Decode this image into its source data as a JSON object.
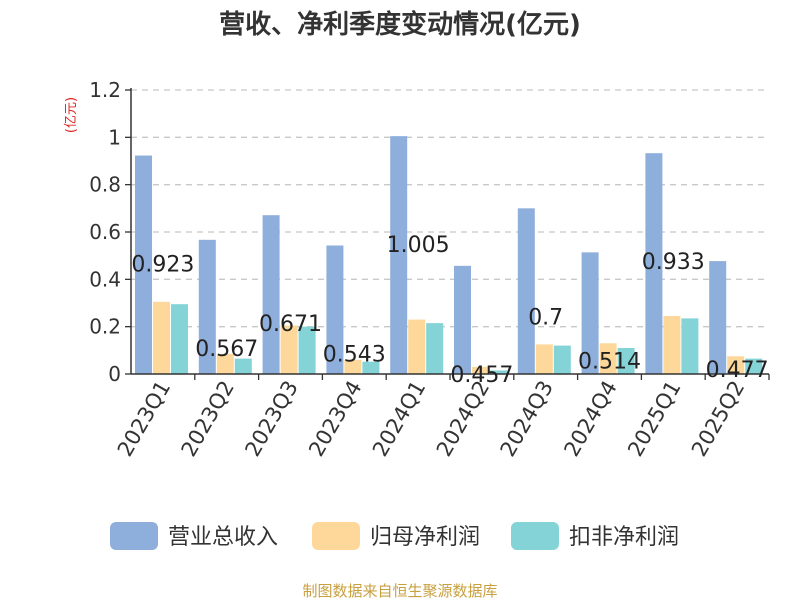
{
  "chart_data": {
    "type": "bar",
    "title": "营收、净利季度变动情况(亿元)",
    "ylabel": "(亿元)",
    "xlabel": "",
    "ylim": [
      0,
      1.2
    ],
    "yticks": [
      "0",
      "0.2",
      "0.4",
      "0.6",
      "0.8",
      "1",
      "1.2"
    ],
    "grid": true,
    "legend_position": "bottom",
    "categories": [
      "2023Q1",
      "2023Q2",
      "2023Q3",
      "2023Q4",
      "2024Q1",
      "2024Q2",
      "2024Q3",
      "2024Q4",
      "2025Q1",
      "2025Q2"
    ],
    "series": [
      {
        "name": "营业总收入",
        "color": "#8eaedb",
        "values": [
          0.923,
          0.567,
          0.671,
          0.543,
          1.005,
          0.457,
          0.7,
          0.514,
          0.933,
          0.477
        ],
        "labels": [
          "0.923",
          "0.567",
          "0.671",
          "0.543",
          "1.005",
          "0.457",
          "0.7",
          "0.514",
          "0.933",
          "0.477"
        ]
      },
      {
        "name": "归母净利润",
        "color": "#fdd89a",
        "values": [
          0.305,
          0.085,
          0.205,
          0.06,
          0.23,
          0.03,
          0.125,
          0.13,
          0.245,
          0.075
        ]
      },
      {
        "name": "扣非净利润",
        "color": "#84d3d6",
        "values": [
          0.295,
          0.065,
          0.2,
          0.052,
          0.215,
          0.015,
          0.12,
          0.11,
          0.235,
          0.065
        ]
      }
    ]
  },
  "footer": {
    "source": "制图数据来自恒生聚源数据库"
  },
  "colors": {
    "title": "#333333",
    "axis": "#333333",
    "grid": "#c8c8c8",
    "ylabel": "#e02020",
    "source": "#c8a040"
  }
}
